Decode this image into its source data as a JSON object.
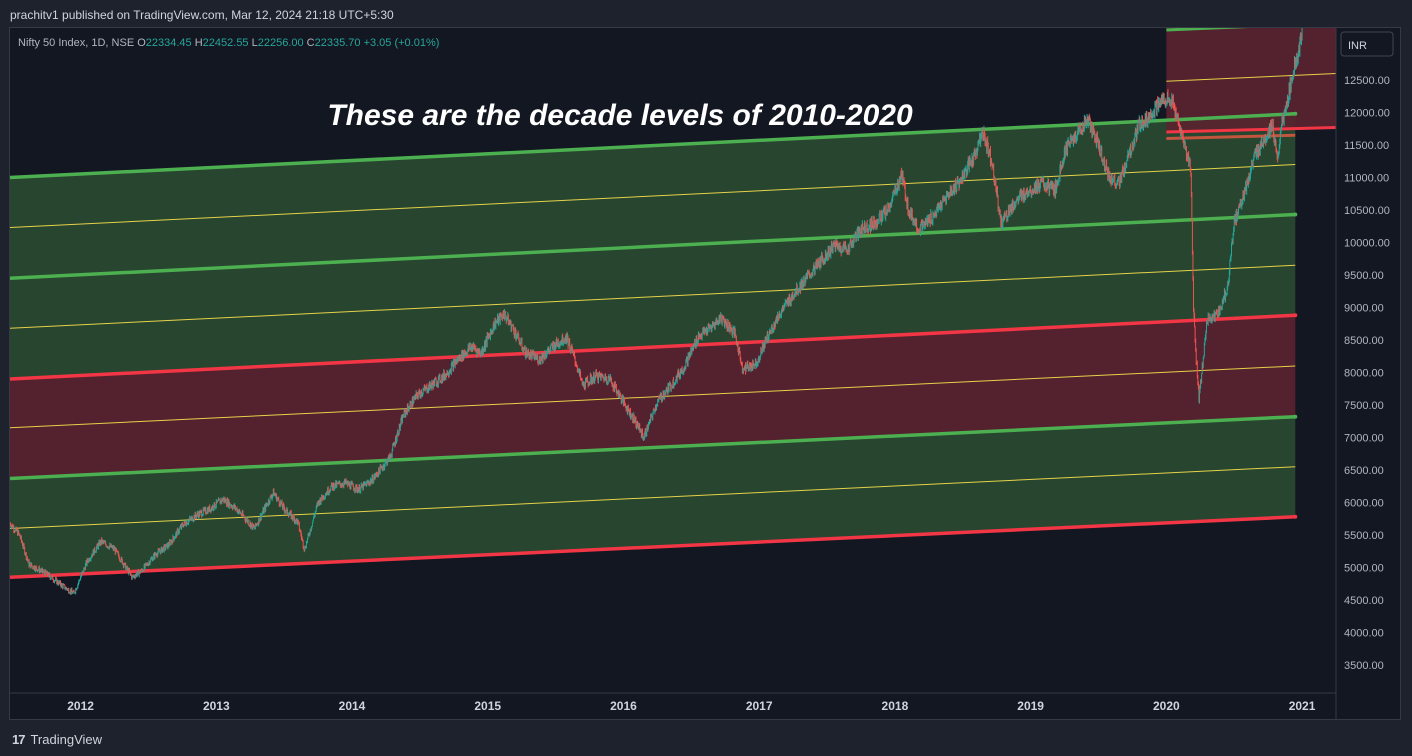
{
  "header": {
    "publisher_line": "prachitv1 published on TradingView.com, Mar 12, 2024 21:18 UTC+5:30"
  },
  "legend": {
    "symbol": "Nifty 50 Index, 1D, NSE",
    "o_label": "O",
    "o_value": "22334.45",
    "h_label": "H",
    "h_value": "22452.55",
    "l_label": "L",
    "l_value": "22256.00",
    "c_label": "C",
    "c_value": "22335.70",
    "change": "+3.05 (+0.01%)"
  },
  "currency_button": "INR",
  "footer": {
    "brand": "TradingView",
    "logo_mark": "17"
  },
  "colors": {
    "green_zone": "#2a4a31",
    "red_zone": "#5c2230",
    "green_line": "#4caf50",
    "red_line": "#f23645",
    "mid_line": "#e6d24a",
    "up_candle": "#26a69a",
    "down_candle": "#ef5350",
    "background": "#131722"
  },
  "chart_data": {
    "type": "line",
    "title": "These are the decade levels of 2010-2020",
    "y_ticks": [
      "12500.00",
      "12000.00",
      "11500.00",
      "11000.00",
      "10500.00",
      "10000.00",
      "9500.00",
      "9000.00",
      "8500.00",
      "8000.00",
      "7500.00",
      "7000.00",
      "6500.00",
      "6000.00",
      "5500.00",
      "5000.00",
      "4500.00",
      "4000.00",
      "3500.00"
    ],
    "x_ticks": [
      "2012",
      "2013",
      "2014",
      "2015",
      "2016",
      "2017",
      "2018",
      "2019",
      "2020",
      "2021"
    ],
    "ylim": [
      3300,
      13300
    ],
    "xlim": [
      2011.48,
      2021.25
    ],
    "channel_lines": [
      {
        "role": "bound",
        "color": "red",
        "x0": 2011.48,
        "y0": 4850,
        "x1": 2020.95,
        "y1": 5780
      },
      {
        "role": "mid",
        "color": "yellow",
        "x0": 2011.48,
        "y0": 5600,
        "x1": 2020.95,
        "y1": 6550
      },
      {
        "role": "bound",
        "color": "green",
        "x0": 2011.48,
        "y0": 6370,
        "x1": 2020.95,
        "y1": 7320
      },
      {
        "role": "mid",
        "color": "yellow",
        "x0": 2011.48,
        "y0": 7150,
        "x1": 2020.95,
        "y1": 8100
      },
      {
        "role": "bound",
        "color": "red",
        "x0": 2011.48,
        "y0": 7900,
        "x1": 2020.95,
        "y1": 8880
      },
      {
        "role": "mid",
        "color": "yellow",
        "x0": 2011.48,
        "y0": 8680,
        "x1": 2020.95,
        "y1": 9650
      },
      {
        "role": "bound",
        "color": "green",
        "x0": 2011.48,
        "y0": 9450,
        "x1": 2020.95,
        "y1": 10430
      },
      {
        "role": "mid",
        "color": "yellow",
        "x0": 2011.48,
        "y0": 10230,
        "x1": 2020.95,
        "y1": 11200
      },
      {
        "role": "bound",
        "color": "green",
        "x0": 2011.48,
        "y0": 11000,
        "x1": 2020.95,
        "y1": 11980
      }
    ],
    "upper_zone": {
      "x0": 2020.0,
      "x1": 2021.25,
      "top": 13300,
      "bottom_left": 11700,
      "bottom_right": 11770,
      "mid_left": 12480,
      "mid_right": 12600,
      "top_line_left": 13270,
      "top_line_right": 13380
    },
    "price_path": [
      [
        2011.48,
        5680
      ],
      [
        2011.55,
        5500
      ],
      [
        2011.62,
        5050
      ],
      [
        2011.75,
        4900
      ],
      [
        2011.88,
        4700
      ],
      [
        2011.95,
        4600
      ],
      [
        2012.05,
        5100
      ],
      [
        2012.15,
        5400
      ],
      [
        2012.25,
        5280
      ],
      [
        2012.38,
        4850
      ],
      [
        2012.45,
        4950
      ],
      [
        2012.55,
        5200
      ],
      [
        2012.65,
        5350
      ],
      [
        2012.75,
        5650
      ],
      [
        2012.85,
        5800
      ],
      [
        2012.95,
        5900
      ],
      [
        2013.05,
        6050
      ],
      [
        2013.15,
        5900
      ],
      [
        2013.28,
        5600
      ],
      [
        2013.38,
        6000
      ],
      [
        2013.42,
        6150
      ],
      [
        2013.5,
        5900
      ],
      [
        2013.6,
        5700
      ],
      [
        2013.65,
        5280
      ],
      [
        2013.75,
        6000
      ],
      [
        2013.85,
        6250
      ],
      [
        2013.95,
        6300
      ],
      [
        2014.05,
        6200
      ],
      [
        2014.15,
        6350
      ],
      [
        2014.28,
        6700
      ],
      [
        2014.38,
        7350
      ],
      [
        2014.48,
        7650
      ],
      [
        2014.58,
        7800
      ],
      [
        2014.68,
        7950
      ],
      [
        2014.78,
        8200
      ],
      [
        2014.88,
        8400
      ],
      [
        2014.95,
        8300
      ],
      [
        2015.05,
        8750
      ],
      [
        2015.12,
        8900
      ],
      [
        2015.18,
        8700
      ],
      [
        2015.28,
        8300
      ],
      [
        2015.38,
        8200
      ],
      [
        2015.48,
        8400
      ],
      [
        2015.58,
        8550
      ],
      [
        2015.65,
        8150
      ],
      [
        2015.7,
        7800
      ],
      [
        2015.8,
        7950
      ],
      [
        2015.9,
        7900
      ],
      [
        2016.0,
        7550
      ],
      [
        2016.1,
        7200
      ],
      [
        2016.15,
        7000
      ],
      [
        2016.25,
        7550
      ],
      [
        2016.35,
        7800
      ],
      [
        2016.45,
        8100
      ],
      [
        2016.55,
        8550
      ],
      [
        2016.65,
        8700
      ],
      [
        2016.72,
        8850
      ],
      [
        2016.82,
        8600
      ],
      [
        2016.88,
        8050
      ],
      [
        2016.98,
        8150
      ],
      [
        2017.05,
        8500
      ],
      [
        2017.15,
        8900
      ],
      [
        2017.25,
        9200
      ],
      [
        2017.35,
        9450
      ],
      [
        2017.45,
        9700
      ],
      [
        2017.55,
        9950
      ],
      [
        2017.65,
        9900
      ],
      [
        2017.75,
        10200
      ],
      [
        2017.85,
        10300
      ],
      [
        2017.95,
        10500
      ],
      [
        2018.05,
        11050
      ],
      [
        2018.1,
        10500
      ],
      [
        2018.18,
        10200
      ],
      [
        2018.28,
        10400
      ],
      [
        2018.38,
        10700
      ],
      [
        2018.48,
        10950
      ],
      [
        2018.58,
        11300
      ],
      [
        2018.65,
        11700
      ],
      [
        2018.72,
        11200
      ],
      [
        2018.78,
        10300
      ],
      [
        2018.88,
        10600
      ],
      [
        2018.98,
        10800
      ],
      [
        2019.08,
        10900
      ],
      [
        2019.18,
        10800
      ],
      [
        2019.25,
        11400
      ],
      [
        2019.35,
        11700
      ],
      [
        2019.42,
        11900
      ],
      [
        2019.5,
        11500
      ],
      [
        2019.58,
        11000
      ],
      [
        2019.65,
        10900
      ],
      [
        2019.72,
        11300
      ],
      [
        2019.8,
        11800
      ],
      [
        2019.9,
        12000
      ],
      [
        2020.0,
        12250
      ],
      [
        2020.05,
        12100
      ],
      [
        2020.12,
        11600
      ],
      [
        2020.18,
        11100
      ],
      [
        2020.2,
        9000
      ],
      [
        2020.22,
        8200
      ],
      [
        2020.24,
        7600
      ],
      [
        2020.3,
        8800
      ],
      [
        2020.38,
        8900
      ],
      [
        2020.45,
        9300
      ],
      [
        2020.5,
        10300
      ],
      [
        2020.58,
        10800
      ],
      [
        2020.65,
        11300
      ],
      [
        2020.72,
        11600
      ],
      [
        2020.78,
        11800
      ],
      [
        2020.82,
        11200
      ],
      [
        2020.85,
        11900
      ],
      [
        2020.88,
        12000
      ],
      [
        2020.92,
        12500
      ],
      [
        2020.98,
        13000
      ],
      [
        2021.02,
        13500
      ]
    ]
  }
}
